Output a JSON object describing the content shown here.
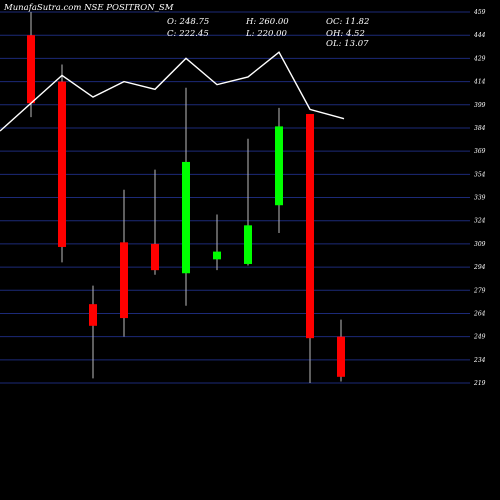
{
  "chart_data": {
    "type": "candlestick",
    "title": "MunafaSutra.com NSE POSITRON_SM",
    "info": {
      "open": "O: 248.75",
      "high": "H: 260.00",
      "oc": "OC: 11.82",
      "close": "C: 222.45",
      "low": "L: 220.00",
      "oh": "OH: 4.52",
      "ol": "OL: 13.07"
    },
    "y_ticks": [
      459,
      444,
      429,
      414,
      399,
      384,
      369,
      354,
      339,
      324,
      309,
      294,
      279,
      264,
      249,
      234,
      219
    ],
    "ylim": [
      219,
      459
    ],
    "grid": true,
    "candles": [
      {
        "open": 444,
        "close": 400,
        "high": 459,
        "low": 391
      },
      {
        "open": 414,
        "close": 307,
        "high": 425,
        "low": 297
      },
      {
        "open": 270,
        "close": 256,
        "high": 282,
        "low": 222
      },
      {
        "open": 310,
        "close": 261,
        "high": 344,
        "low": 249
      },
      {
        "open": 309,
        "close": 292,
        "high": 357,
        "low": 289
      },
      {
        "open": 290,
        "close": 362,
        "high": 410,
        "low": 269
      },
      {
        "open": 299,
        "close": 304,
        "high": 328,
        "low": 292
      },
      {
        "open": 296,
        "close": 321,
        "high": 377,
        "low": 295
      },
      {
        "open": 334,
        "close": 385,
        "high": 397,
        "low": 316
      },
      {
        "open": 393,
        "close": 248,
        "high": 393,
        "low": 219
      },
      {
        "open": 249,
        "close": 223,
        "high": 260,
        "low": 220
      }
    ],
    "line": [
      382,
      418,
      404,
      414,
      409,
      429,
      412,
      417,
      433,
      396,
      390
    ],
    "colors": {
      "up": "#00ff00",
      "down": "#ff0000",
      "line": "#ffffff",
      "grid": "#1c2a78",
      "background": "#000000"
    }
  }
}
